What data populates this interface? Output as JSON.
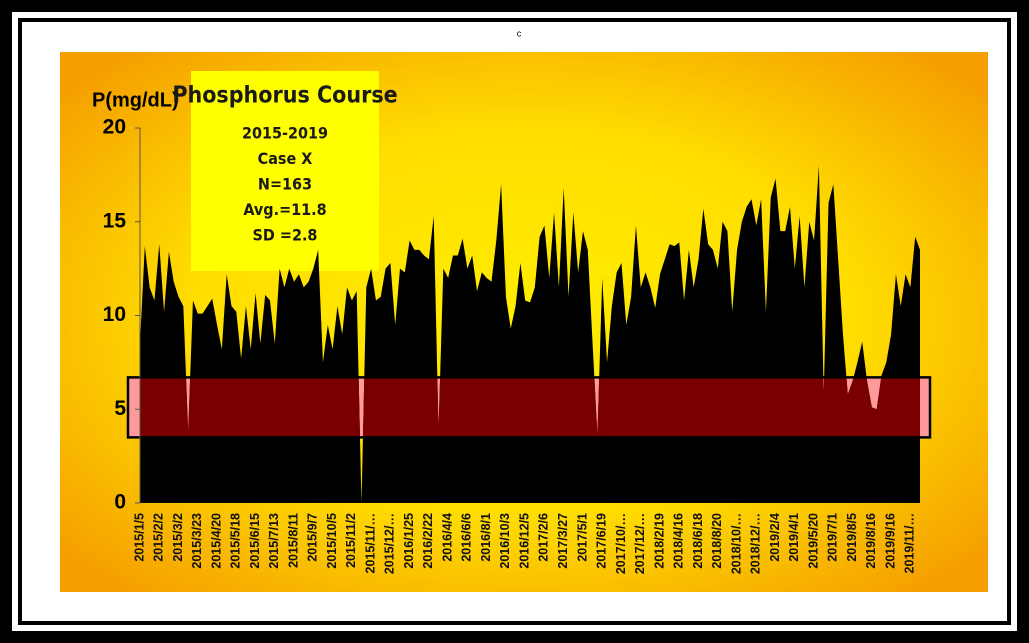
{
  "chart_data": {
    "type": "area",
    "corner_text": "c",
    "y_label": "P(mg/dL)",
    "annotation": {
      "title": "Phosphorus Course",
      "lines": [
        "2015-2019",
        "Case X",
        "N=163",
        "Avg.=11.8",
        "SD =2.8"
      ]
    },
    "color": "#000000",
    "band_color": "#7a0000",
    "band_fill": "#ff9a9a",
    "target_range": [
      3.5,
      6.7
    ],
    "ylim": [
      0,
      20
    ],
    "yticks": [
      0,
      5,
      10,
      15,
      20
    ],
    "categories": [
      "2015/1/5",
      null,
      null,
      null,
      "2015/2/2",
      null,
      null,
      null,
      "2015/3/2",
      null,
      null,
      null,
      "2015/3/23",
      null,
      null,
      null,
      "2015/4/20",
      null,
      null,
      null,
      "2015/5/18",
      null,
      null,
      null,
      "2015/6/15",
      null,
      null,
      null,
      "2015/7/13",
      null,
      null,
      null,
      "2015/8/11",
      null,
      null,
      null,
      "2015/9/7",
      null,
      null,
      null,
      "2015/10/5",
      null,
      null,
      null,
      "2015/11/2",
      null,
      null,
      null,
      "2015/11/…",
      null,
      null,
      null,
      "2015/12/…",
      null,
      null,
      null,
      "2016/1/25",
      null,
      null,
      null,
      "2016/2/22",
      null,
      null,
      null,
      "2016/4/4",
      null,
      null,
      null,
      "2016/6/6",
      null,
      null,
      null,
      "2016/8/1",
      null,
      null,
      null,
      "2016/10/3",
      null,
      null,
      null,
      "2016/12/5",
      null,
      null,
      null,
      "2017/2/6",
      null,
      null,
      null,
      "2017/3/27",
      null,
      null,
      null,
      "2017/5/1",
      null,
      null,
      null,
      "2017/6/19",
      null,
      null,
      null,
      "2017/10/…",
      null,
      null,
      null,
      "2017/12/…",
      null,
      null,
      null,
      "2018/2/19",
      null,
      null,
      null,
      "2018/4/16",
      null,
      null,
      null,
      "2018/6/18",
      null,
      null,
      null,
      "2018/8/20",
      null,
      null,
      null,
      "2018/10/…",
      null,
      null,
      null,
      "2018/12/…",
      null,
      null,
      null,
      "2019/2/4",
      null,
      null,
      null,
      "2019/4/1",
      null,
      null,
      null,
      "2019/5/20",
      null,
      null,
      null,
      "2019/7/1",
      null,
      null,
      null,
      "2019/8/5",
      null,
      null,
      null,
      "2019/8/16",
      null,
      null,
      null,
      "2019/9/16",
      null,
      null,
      null,
      "2019/11/…",
      null,
      null
    ],
    "values": [
      8.5,
      13.7,
      11.5,
      10.8,
      13.8,
      10.2,
      13.4,
      11.8,
      11,
      10.5,
      3.8,
      10.8,
      10.1,
      10.1,
      10.5,
      10.9,
      9.5,
      8.2,
      12.2,
      10.5,
      10.2,
      7.7,
      10.5,
      8.2,
      11.2,
      8.5,
      11.1,
      10.8,
      8.5,
      12.5,
      11.5,
      12.5,
      11.8,
      12.2,
      11.5,
      11.8,
      12.5,
      13.5,
      7.5,
      9.5,
      8.2,
      10.5,
      9,
      11.5,
      10.8,
      11.3,
      0,
      11.5,
      12.5,
      10.8,
      11,
      12.5,
      12.8,
      9.5,
      12.5,
      12.3,
      14,
      13.5,
      13.5,
      13.2,
      13,
      15.3,
      3.9,
      12.5,
      12,
      13.2,
      13.2,
      14.1,
      12.5,
      13.2,
      11.3,
      12.3,
      12,
      11.8,
      14,
      17,
      11,
      9.3,
      10.5,
      12.8,
      10.8,
      10.7,
      11.5,
      14.2,
      14.8,
      12,
      15.5,
      11.5,
      16.8,
      11,
      15.5,
      12.3,
      14.5,
      13.5,
      8.5,
      3.6,
      12,
      7.5,
      10.5,
      12.3,
      12.8,
      9.5,
      11,
      14.8,
      11.5,
      12.3,
      11.5,
      10.4,
      12.2,
      13,
      13.8,
      13.7,
      13.9,
      10.8,
      13.5,
      11.5,
      13,
      15.7,
      13.8,
      13.5,
      12.5,
      15,
      14.5,
      10.2,
      13.5,
      15,
      15.8,
      16.2,
      14.8,
      16.2,
      10.2,
      16.3,
      17.3,
      14.5,
      14.5,
      15.8,
      12.5,
      15.3,
      11.5,
      15,
      14,
      18,
      5.8,
      16,
      17,
      13,
      9,
      5.8,
      6.5,
      7.5,
      8.6,
      6.5,
      5.1,
      5,
      6.8,
      7.5,
      9,
      12.2,
      10.5,
      12.2,
      11.5,
      14.2,
      13.5
    ]
  }
}
